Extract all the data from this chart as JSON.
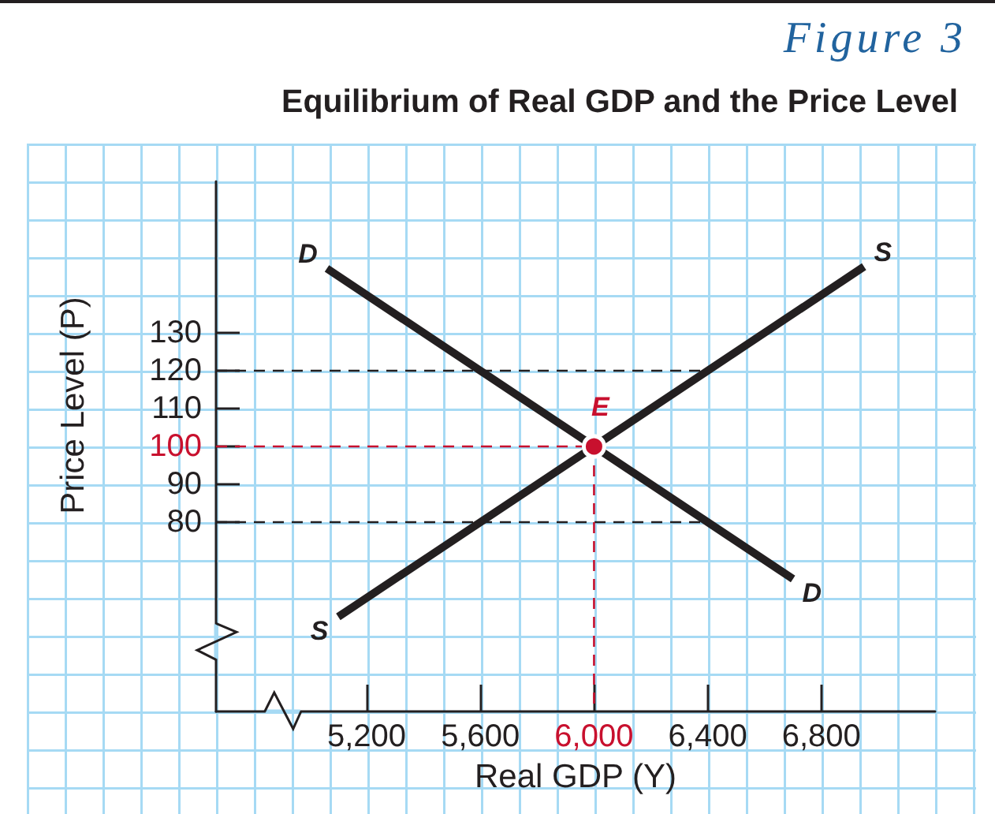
{
  "chart_data": {
    "type": "line",
    "title": "Equilibrium of Real GDP and the Price Level",
    "xlabel": "Real GDP (Y)",
    "ylabel": "Price Level (P)",
    "annotations": [
      "Figure 3"
    ],
    "xlim": [
      4670,
      7200
    ],
    "ylim": [
      30,
      170
    ],
    "xticks": [
      {
        "value": 5200,
        "label": "5,200"
      },
      {
        "value": 5600,
        "label": "5,600"
      },
      {
        "value": 6000,
        "label": "6,000"
      },
      {
        "value": 6400,
        "label": "6,400"
      },
      {
        "value": 6800,
        "label": "6,800"
      }
    ],
    "yticks": [
      80,
      90,
      100,
      110,
      120,
      130
    ],
    "marker": "none",
    "line_style": "solid",
    "series": [
      {
        "name": "D",
        "color": "#231f20",
        "x": [
          5060,
          6700
        ],
        "values": [
          147,
          65
        ]
      },
      {
        "name": "S",
        "color": "#231f20",
        "x": [
          5100,
          6950
        ],
        "values": [
          55,
          147.5
        ]
      },
      {
        "color": "#231f20",
        "line_style": "dashed",
        "x": [
          4670,
          6400
        ],
        "values": [
          120,
          120
        ]
      },
      {
        "color": "#231f20",
        "line_style": "dashed",
        "x": [
          4670,
          6400
        ],
        "values": [
          80,
          80
        ]
      },
      {
        "color": "#c8102e",
        "line_style": "dashed",
        "x": [
          4670,
          6000
        ],
        "values": [
          100,
          100
        ]
      },
      {
        "color": "#c8102e",
        "line_style": "dashed",
        "x": [
          6000,
          6000
        ],
        "values": [
          100,
          30
        ]
      },
      {
        "name": "E",
        "type": "scatter",
        "marker": "circle",
        "color": "#c8102e",
        "x": [
          6000
        ],
        "values": [
          100
        ]
      }
    ]
  }
}
